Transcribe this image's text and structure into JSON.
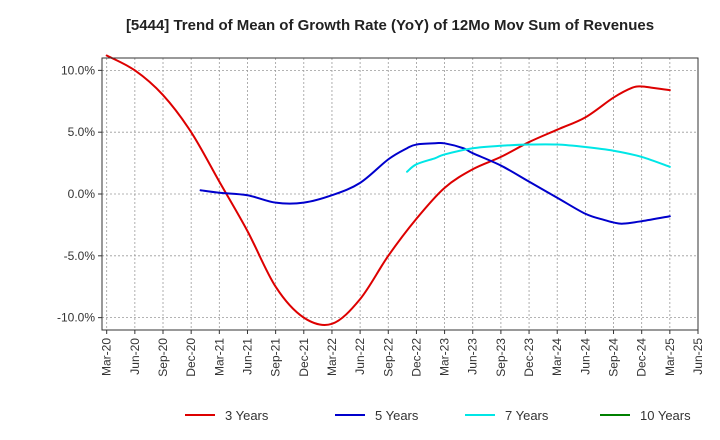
{
  "chart_data": {
    "type": "line",
    "title": "[5444]  Trend of Mean of Growth Rate (YoY) of 12Mo Mov Sum of Revenues",
    "xlabel": "",
    "ylabel": "",
    "ylim": [
      -11.0,
      11.0
    ],
    "y_ticks": [
      10.0,
      5.0,
      0.0,
      -5.0,
      -10.0
    ],
    "y_tick_labels": [
      "10.0%",
      "5.0%",
      "0.0%",
      "-5.0%",
      "-10.0%"
    ],
    "x_start": "Mar-20",
    "x_end": "Jun-25",
    "x_ticks": [
      0,
      3,
      6,
      9,
      12,
      15,
      18,
      21,
      24,
      27,
      30,
      33,
      36,
      39,
      42,
      45,
      48,
      51,
      54,
      57,
      60,
      63
    ],
    "x_tick_labels": [
      "Mar-20",
      "Jun-20",
      "Sep-20",
      "Dec-20",
      "Mar-21",
      "Jun-21",
      "Sep-21",
      "Dec-21",
      "Mar-22",
      "Jun-22",
      "Sep-22",
      "Dec-22",
      "Mar-23",
      "Jun-23",
      "Sep-23",
      "Dec-23",
      "Mar-24",
      "Jun-24",
      "Sep-24",
      "Dec-24",
      "Mar-25",
      "Jun-25"
    ],
    "grid": true,
    "legend_position": "bottom",
    "series": [
      {
        "name": "3 Years",
        "color": "#dd0000",
        "x": [
          0,
          3,
          6,
          9,
          12,
          15,
          18,
          21,
          24,
          27,
          30,
          33,
          36,
          39,
          42,
          45,
          48,
          51,
          54,
          56,
          57,
          58,
          59,
          60
        ],
        "values": [
          11.2,
          10.0,
          8.0,
          5.0,
          1.0,
          -3.0,
          -7.5,
          -10.0,
          -10.5,
          -8.5,
          -5.0,
          -2.0,
          0.5,
          2.0,
          3.0,
          4.2,
          5.2,
          6.2,
          7.8,
          8.6,
          8.7,
          8.6,
          8.5,
          8.4
        ]
      },
      {
        "name": "5 Years",
        "color": "#0000cc",
        "x": [
          10,
          12,
          15,
          18,
          21,
          24,
          27,
          30,
          32,
          33,
          35,
          36,
          38,
          39,
          42,
          45,
          48,
          51,
          53,
          54,
          55,
          57,
          60
        ],
        "values": [
          0.3,
          0.1,
          -0.1,
          -0.7,
          -0.7,
          -0.1,
          0.9,
          2.8,
          3.7,
          4.0,
          4.1,
          4.1,
          3.7,
          3.3,
          2.3,
          1.0,
          -0.3,
          -1.6,
          -2.1,
          -2.3,
          -2.4,
          -2.2,
          -1.8
        ]
      },
      {
        "name": "7 Years",
        "color": "#00e6e6",
        "x": [
          32,
          33,
          35,
          36,
          39,
          42,
          45,
          48,
          51,
          54,
          57,
          60
        ],
        "values": [
          1.8,
          2.4,
          2.9,
          3.2,
          3.7,
          3.9,
          4.0,
          4.0,
          3.8,
          3.5,
          3.0,
          2.2
        ]
      },
      {
        "name": "10 Years",
        "color": "#008000",
        "x": [],
        "values": []
      }
    ]
  }
}
